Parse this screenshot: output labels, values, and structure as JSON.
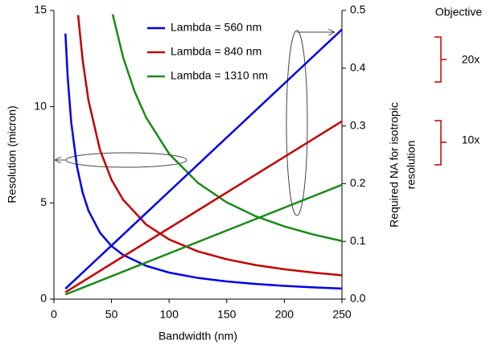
{
  "chart_data": {
    "type": "line",
    "xlabel": "Bandwidth (nm)",
    "ylabel": "Resolution (micron)",
    "y2label": [
      "Required NA for isotropic",
      "resolution"
    ],
    "xlim": [
      0,
      250
    ],
    "xticks": [
      0,
      50,
      100,
      150,
      200,
      250
    ],
    "ylim": [
      0,
      15
    ],
    "yticks": [
      0,
      5,
      10,
      15
    ],
    "y2lim": [
      0,
      0.5
    ],
    "y2ticks": [
      {
        "value": 0,
        "label": "0.0"
      },
      0.1,
      0.2,
      0.3,
      0.4,
      0.5
    ],
    "legend": "top",
    "series": [
      {
        "name": "Lambda = 560 nm",
        "color": "#0000e6",
        "x": [
          10,
          12,
          15,
          20,
          25,
          30,
          40,
          50,
          60,
          80,
          100,
          125,
          150,
          175,
          200,
          225,
          250
        ],
        "values": [
          13.8,
          11.5,
          9.2,
          6.9,
          5.52,
          4.6,
          3.45,
          2.76,
          2.3,
          1.73,
          1.38,
          1.1,
          0.92,
          0.79,
          0.69,
          0.61,
          0.55
        ]
      },
      {
        "name": "Lambda = 840 nm",
        "color": "#c00000",
        "x": [
          21,
          25,
          30,
          40,
          50,
          60,
          80,
          100,
          125,
          150,
          175,
          200,
          225,
          250
        ],
        "values": [
          14.76,
          12.4,
          10.33,
          7.75,
          6.2,
          5.17,
          3.88,
          3.1,
          2.48,
          2.07,
          1.77,
          1.55,
          1.38,
          1.24
        ]
      },
      {
        "name": "Lambda = 1310 nm",
        "color": "#1a8a1a",
        "x": [
          51,
          60,
          70,
          80,
          100,
          125,
          150,
          175,
          200,
          225,
          250
        ],
        "values": [
          14.8,
          12.58,
          10.79,
          9.44,
          7.55,
          6.04,
          5.03,
          4.31,
          3.78,
          3.36,
          3.02
        ]
      },
      {
        "color": "#0000e6",
        "axis": "y2",
        "x": [
          10,
          250
        ],
        "values": [
          0.018,
          0.467
        ]
      },
      {
        "color": "#c00000",
        "axis": "y2",
        "x": [
          10,
          250
        ],
        "values": [
          0.012,
          0.308
        ]
      },
      {
        "color": "#1a8a1a",
        "axis": "y2",
        "x": [
          10,
          250
        ],
        "values": [
          0.008,
          0.198
        ]
      }
    ],
    "annotations": [
      "Objective",
      "20x",
      "10x"
    ]
  }
}
